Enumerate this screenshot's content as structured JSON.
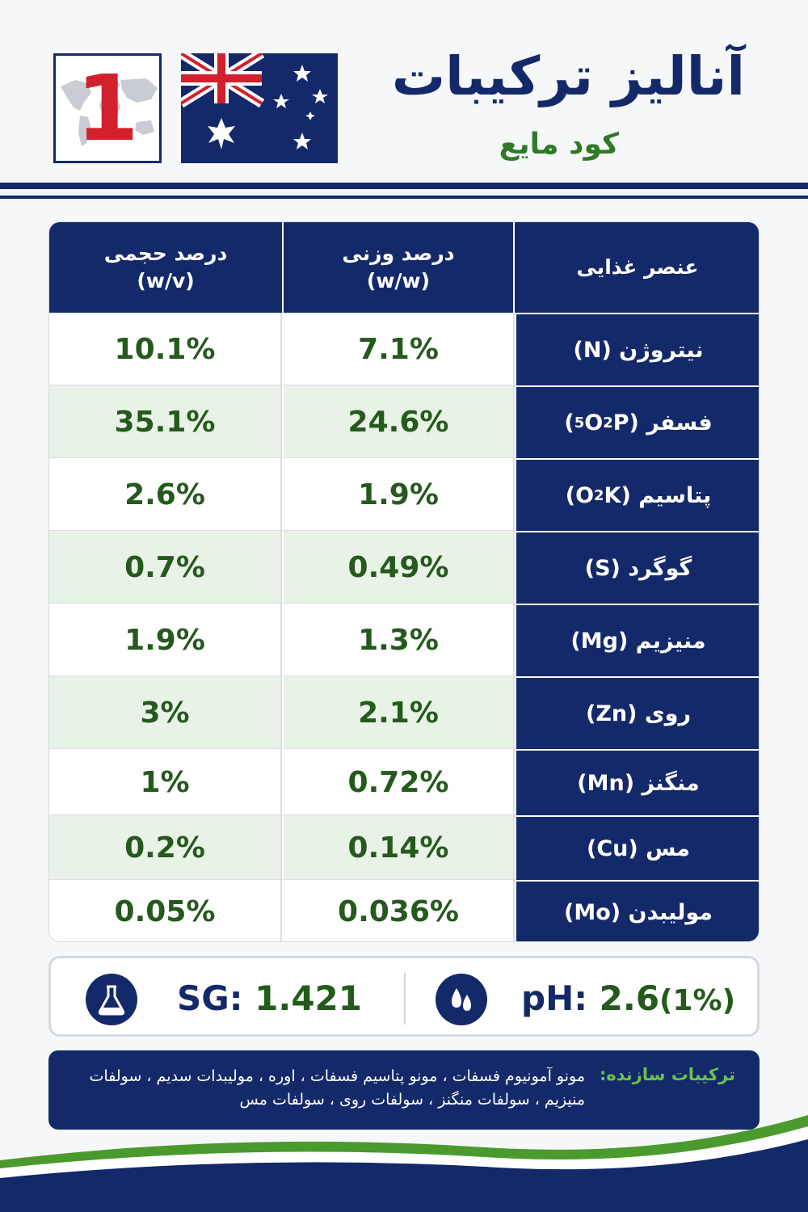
{
  "header": {
    "number_badge": "1",
    "title": "آنالیز ترکیبات",
    "subtitle": "کود مایع",
    "flag_icon": "australia-flag-icon",
    "colors": {
      "navy": "#14296a",
      "green": "#2f7a25",
      "red": "#d3202f"
    }
  },
  "table": {
    "headers": {
      "element": "عنصر غذایی",
      "weight": "درصد وزنی",
      "weight_unit": "(w/w)",
      "volume": "درصد حجمی",
      "volume_unit": "(w/v)"
    },
    "rows": [
      {
        "element": "نیتروژن (N)",
        "weight": "7.1%",
        "volume": "10.1%"
      },
      {
        "element_pre": "فسفر (P",
        "element_sub1": "2",
        "element_mid": "O",
        "element_sub2": "5",
        "element_post": ")",
        "weight": "24.6%",
        "volume": "35.1%"
      },
      {
        "element_pre": "پتاسیم (K",
        "element_sub1": "2",
        "element_post": "O)",
        "weight": "1.9%",
        "volume": "2.6%"
      },
      {
        "element": "گوگرد (S)",
        "weight": "0.49%",
        "volume": "0.7%"
      },
      {
        "element": "منیزیم (Mg)",
        "weight": "1.3%",
        "volume": "1.9%"
      },
      {
        "element": "روی (Zn)",
        "weight": "2.1%",
        "volume": "3%"
      },
      {
        "element": "منگنز (Mn)",
        "weight": "0.72%",
        "volume": "1%"
      },
      {
        "element": "مس (Cu)",
        "weight": "0.14%",
        "volume": "0.2%"
      },
      {
        "element": "مولیبدن (Mo)",
        "weight": "0.036%",
        "volume": "0.05%"
      }
    ]
  },
  "properties": {
    "sg_label": "SG:",
    "sg_value": "1.421",
    "sg_icon": "flask-icon",
    "ph_label": "pH:",
    "ph_value": "2.6",
    "ph_note": "(1%)",
    "ph_icon": "droplets-icon"
  },
  "ingredients": {
    "label": "ترکیبات سازنده:",
    "text": "مونو آمونیوم فسفات ، مونو پتاسیم فسفات ، اوره ، مولیبدات سدیم ، سولفات منیزیم ، سولفات منگنز ، سولفات روی ، سولفات مس"
  }
}
